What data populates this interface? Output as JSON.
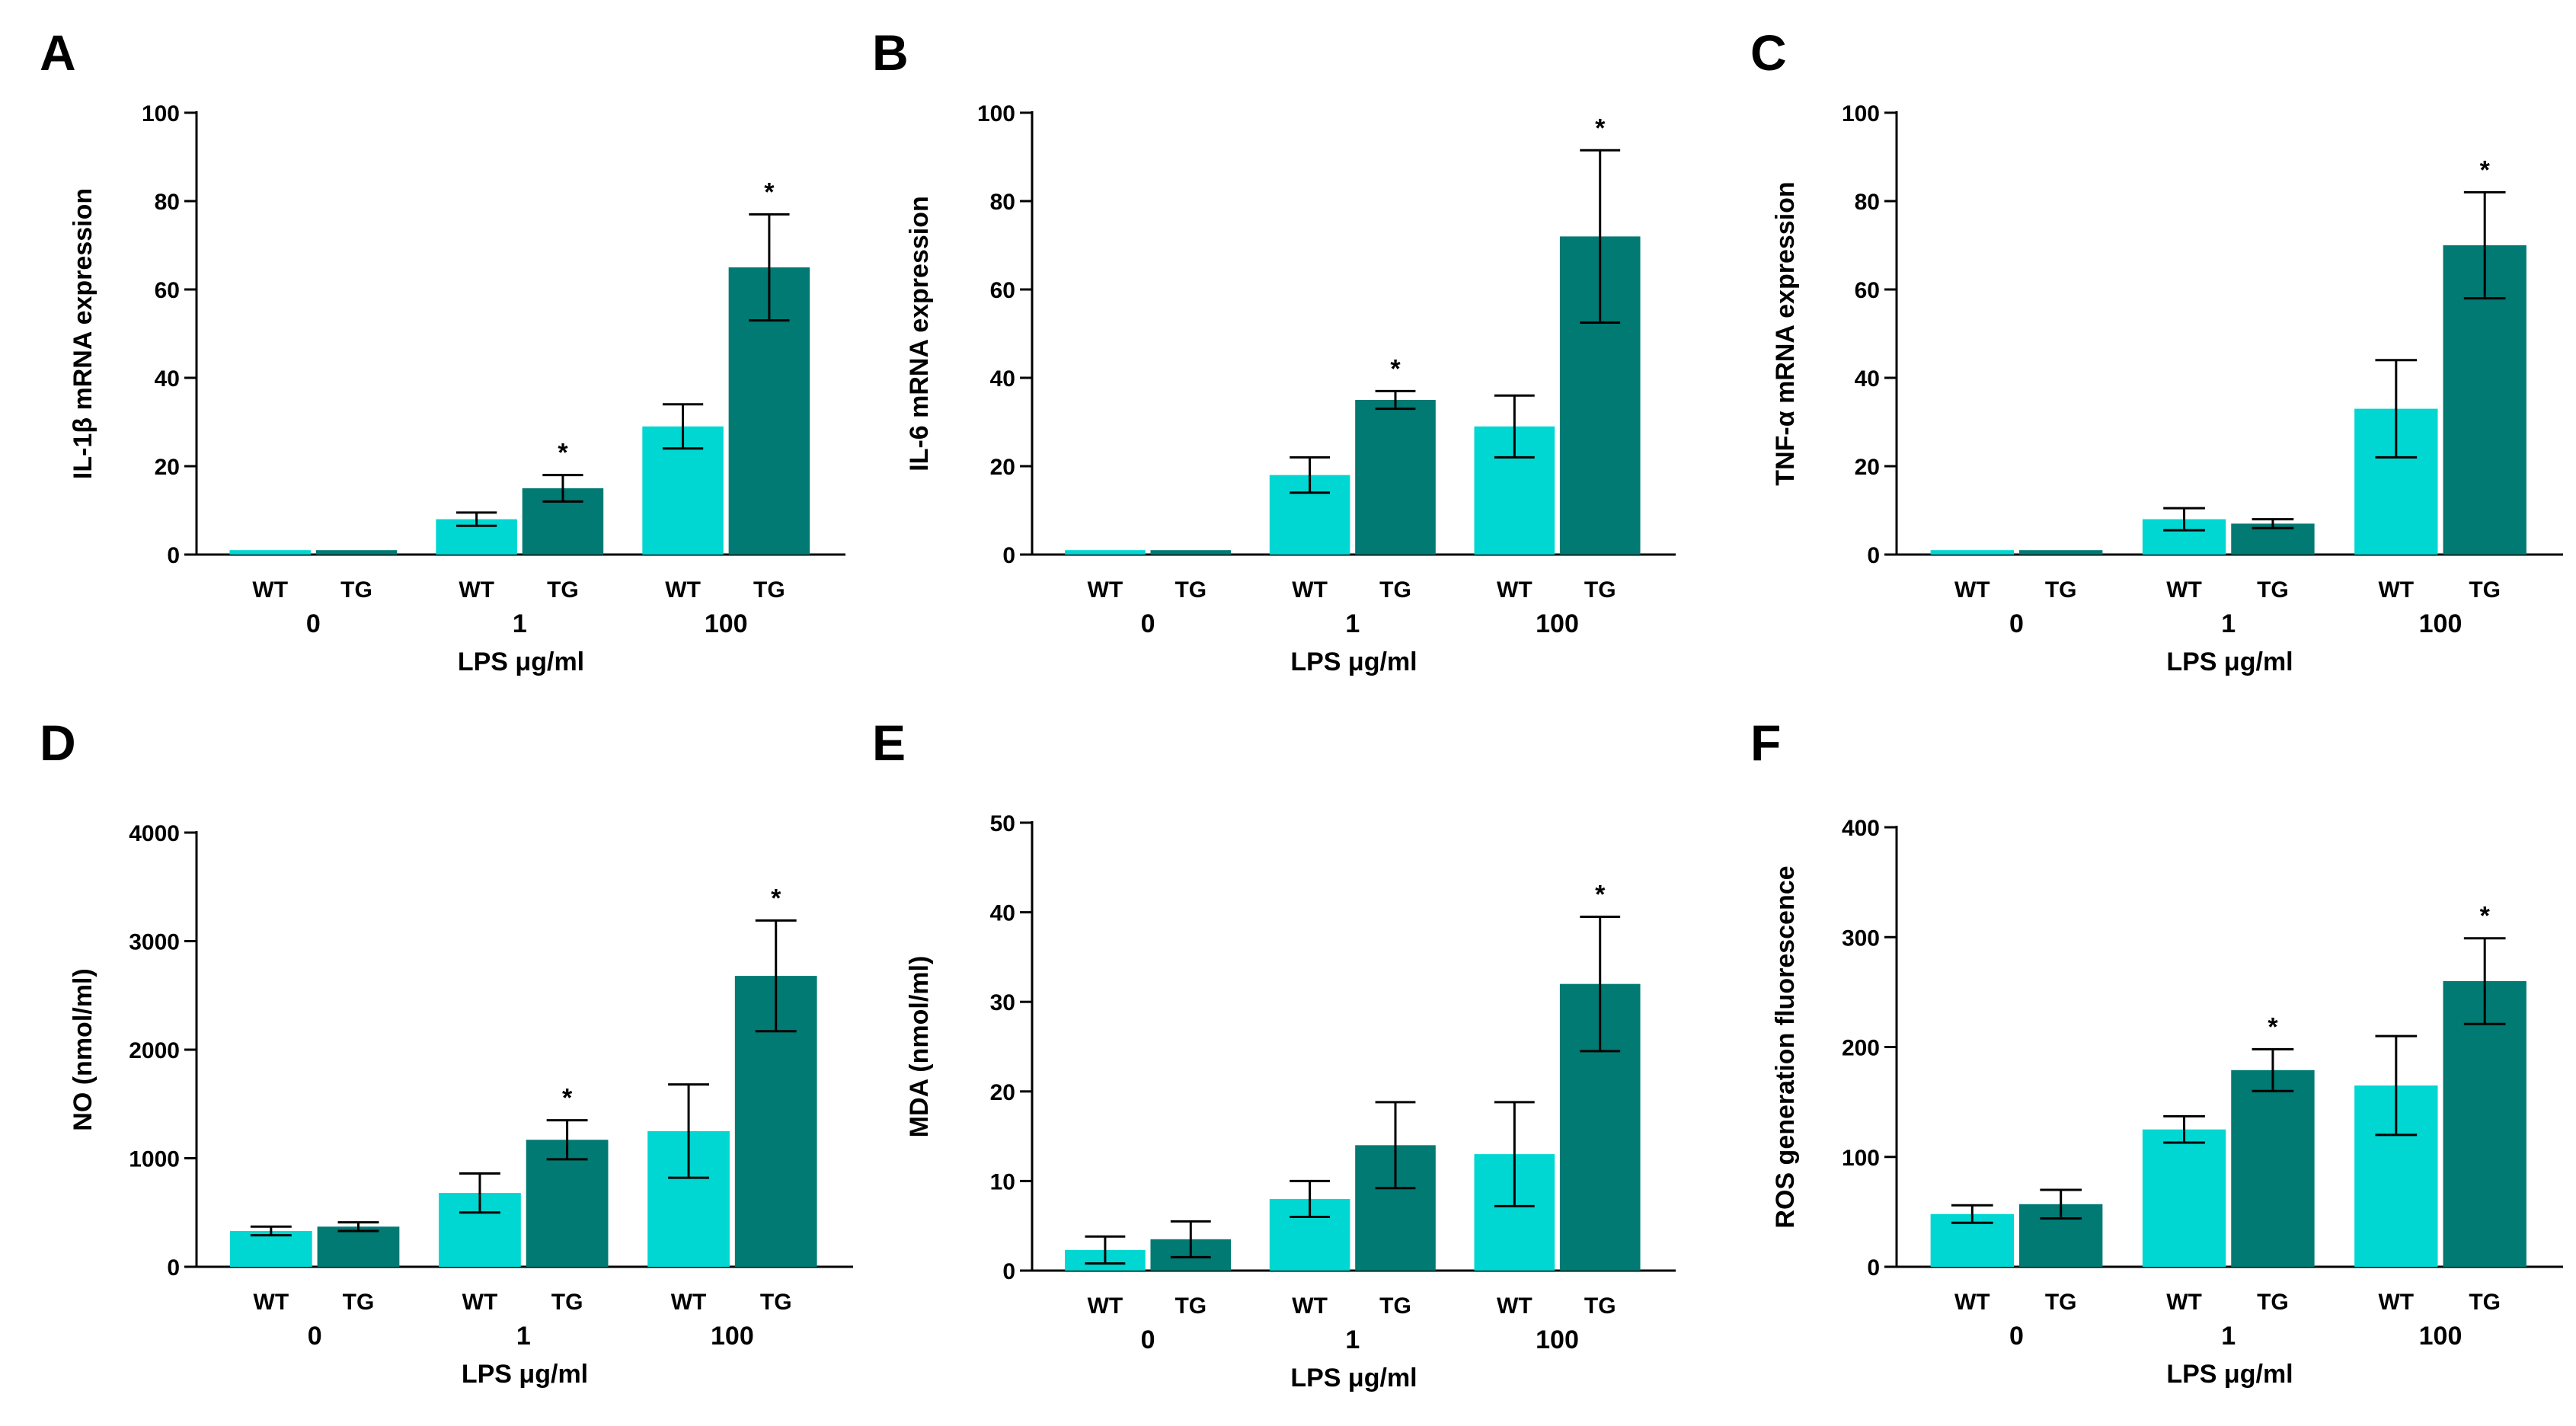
{
  "colors": {
    "wt": "#00D7D2",
    "tg": "#007A72",
    "axis": "#000000"
  },
  "chart_data": [
    {
      "panel": "A",
      "type": "bar",
      "ylabel": "IL-1β  mRNA expression",
      "xlabel": "LPS μg/ml",
      "ylim": [
        0,
        100
      ],
      "yticks": [
        "0",
        "20",
        "40",
        "60",
        "80",
        "100"
      ],
      "doses": [
        "0",
        "1",
        "100"
      ],
      "groups": [
        "WT",
        "TG"
      ],
      "bars": [
        {
          "dose": "0",
          "group": "WT",
          "value": 1,
          "error": 0,
          "sig": ""
        },
        {
          "dose": "0",
          "group": "TG",
          "value": 1,
          "error": 0,
          "sig": ""
        },
        {
          "dose": "1",
          "group": "WT",
          "value": 8,
          "error": 1.5,
          "sig": ""
        },
        {
          "dose": "1",
          "group": "TG",
          "value": 15,
          "error": 3,
          "sig": "*"
        },
        {
          "dose": "100",
          "group": "WT",
          "value": 29,
          "error": 5,
          "sig": ""
        },
        {
          "dose": "100",
          "group": "TG",
          "value": 65,
          "error": 12,
          "sig": "*"
        }
      ]
    },
    {
      "panel": "B",
      "type": "bar",
      "ylabel": "IL-6 mRNA expression",
      "xlabel": "LPS μg/ml",
      "ylim": [
        0,
        100
      ],
      "yticks": [
        "0",
        "20",
        "40",
        "60",
        "80",
        "100"
      ],
      "doses": [
        "0",
        "1",
        "100"
      ],
      "groups": [
        "WT",
        "TG"
      ],
      "bars": [
        {
          "dose": "0",
          "group": "WT",
          "value": 1,
          "error": 0,
          "sig": ""
        },
        {
          "dose": "0",
          "group": "TG",
          "value": 1,
          "error": 0,
          "sig": ""
        },
        {
          "dose": "1",
          "group": "WT",
          "value": 18,
          "error": 4,
          "sig": ""
        },
        {
          "dose": "1",
          "group": "TG",
          "value": 35,
          "error": 2,
          "sig": "*"
        },
        {
          "dose": "100",
          "group": "WT",
          "value": 29,
          "error": 7,
          "sig": ""
        },
        {
          "dose": "100",
          "group": "TG",
          "value": 72,
          "error": 19.5,
          "sig": "*"
        }
      ]
    },
    {
      "panel": "C",
      "type": "bar",
      "ylabel": "TNF-α  mRNA expression",
      "xlabel": "LPS μg/ml",
      "ylim": [
        0,
        100
      ],
      "yticks": [
        "0",
        "20",
        "40",
        "60",
        "80",
        "100"
      ],
      "doses": [
        "0",
        "1",
        "100"
      ],
      "groups": [
        "WT",
        "TG"
      ],
      "bars": [
        {
          "dose": "0",
          "group": "WT",
          "value": 1,
          "error": 0,
          "sig": ""
        },
        {
          "dose": "0",
          "group": "TG",
          "value": 1,
          "error": 0,
          "sig": ""
        },
        {
          "dose": "1",
          "group": "WT",
          "value": 8,
          "error": 2.5,
          "sig": ""
        },
        {
          "dose": "1",
          "group": "TG",
          "value": 7,
          "error": 1,
          "sig": ""
        },
        {
          "dose": "100",
          "group": "WT",
          "value": 33,
          "error": 11,
          "sig": ""
        },
        {
          "dose": "100",
          "group": "TG",
          "value": 70,
          "error": 12,
          "sig": "*"
        }
      ]
    },
    {
      "panel": "D",
      "type": "bar",
      "ylabel": "NO (nmol/ml)",
      "xlabel": "LPS μg/ml",
      "ylim": [
        0,
        4000
      ],
      "yticks": [
        "0",
        "1000",
        "2000",
        "3000",
        "4000"
      ],
      "doses": [
        "0",
        "1",
        "100"
      ],
      "groups": [
        "WT",
        "TG"
      ],
      "bars": [
        {
          "dose": "0",
          "group": "WT",
          "value": 330,
          "error": 40,
          "sig": ""
        },
        {
          "dose": "0",
          "group": "TG",
          "value": 370,
          "error": 40,
          "sig": ""
        },
        {
          "dose": "1",
          "group": "WT",
          "value": 680,
          "error": 180,
          "sig": ""
        },
        {
          "dose": "1",
          "group": "TG",
          "value": 1170,
          "error": 180,
          "sig": "*"
        },
        {
          "dose": "100",
          "group": "WT",
          "value": 1250,
          "error": 430,
          "sig": ""
        },
        {
          "dose": "100",
          "group": "TG",
          "value": 2680,
          "error": 510,
          "sig": "*"
        }
      ]
    },
    {
      "panel": "E",
      "type": "bar",
      "ylabel": "MDA (nmol/ml)",
      "xlabel": "LPS μg/ml",
      "ylim": [
        0,
        50
      ],
      "yticks": [
        "0",
        "10",
        "20",
        "30",
        "40",
        "50"
      ],
      "doses": [
        "0",
        "1",
        "100"
      ],
      "groups": [
        "WT",
        "TG"
      ],
      "bars": [
        {
          "dose": "0",
          "group": "WT",
          "value": 2.3,
          "error": 1.5,
          "sig": ""
        },
        {
          "dose": "0",
          "group": "TG",
          "value": 3.5,
          "error": 2,
          "sig": ""
        },
        {
          "dose": "1",
          "group": "WT",
          "value": 8,
          "error": 2,
          "sig": ""
        },
        {
          "dose": "1",
          "group": "TG",
          "value": 14,
          "error": 4.8,
          "sig": ""
        },
        {
          "dose": "100",
          "group": "WT",
          "value": 13,
          "error": 5.8,
          "sig": ""
        },
        {
          "dose": "100",
          "group": "TG",
          "value": 32,
          "error": 7.5,
          "sig": "*"
        }
      ]
    },
    {
      "panel": "F",
      "type": "bar",
      "ylabel": "ROS generation fluorescence",
      "xlabel": "LPS μg/ml",
      "ylim": [
        0,
        400
      ],
      "yticks": [
        "0",
        "100",
        "200",
        "300",
        "400"
      ],
      "doses": [
        "0",
        "1",
        "100"
      ],
      "groups": [
        "WT",
        "TG"
      ],
      "bars": [
        {
          "dose": "0",
          "group": "WT",
          "value": 48,
          "error": 8,
          "sig": ""
        },
        {
          "dose": "0",
          "group": "TG",
          "value": 57,
          "error": 13,
          "sig": ""
        },
        {
          "dose": "1",
          "group": "WT",
          "value": 125,
          "error": 12,
          "sig": ""
        },
        {
          "dose": "1",
          "group": "TG",
          "value": 179,
          "error": 19,
          "sig": "*"
        },
        {
          "dose": "100",
          "group": "WT",
          "value": 165,
          "error": 45,
          "sig": ""
        },
        {
          "dose": "100",
          "group": "TG",
          "value": 260,
          "error": 39,
          "sig": "*"
        }
      ]
    }
  ]
}
